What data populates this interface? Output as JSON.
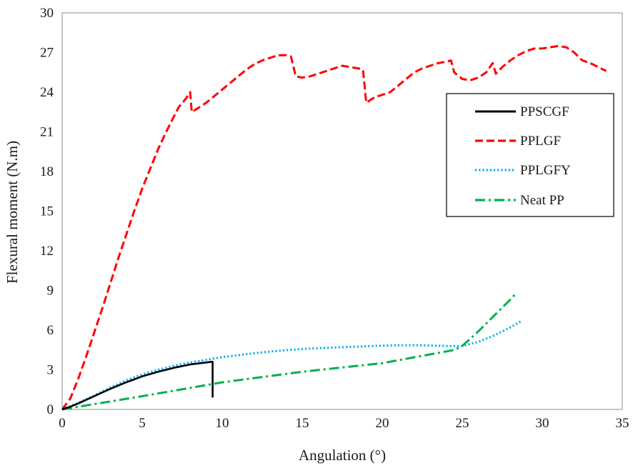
{
  "chart_data": {
    "type": "line",
    "title": "",
    "xlabel": "Angulation (°)",
    "ylabel": "Flexural moment (N.m)",
    "xlim": [
      0,
      35
    ],
    "ylim": [
      0,
      30
    ],
    "xticks": [
      0,
      5,
      10,
      15,
      20,
      25,
      30,
      35
    ],
    "yticks": [
      0,
      3,
      6,
      9,
      12,
      15,
      18,
      21,
      24,
      27,
      30
    ],
    "grid": false,
    "legend_position": "right",
    "series": [
      {
        "name": "PPSCGF",
        "color": "#000000",
        "dash": "solid",
        "points": [
          [
            0,
            0
          ],
          [
            0.5,
            0.2
          ],
          [
            1,
            0.45
          ],
          [
            2,
            1
          ],
          [
            3,
            1.55
          ],
          [
            4,
            2.05
          ],
          [
            5,
            2.5
          ],
          [
            6,
            2.85
          ],
          [
            7,
            3.15
          ],
          [
            8,
            3.4
          ],
          [
            9,
            3.55
          ],
          [
            9.3,
            3.6
          ],
          [
            9.4,
            3.6
          ],
          [
            9.4,
            0.9
          ]
        ]
      },
      {
        "name": "PPLGF",
        "color": "#ff0000",
        "dash": "dashed",
        "points": [
          [
            0,
            0
          ],
          [
            0.5,
            0.8
          ],
          [
            1,
            2.3
          ],
          [
            1.5,
            4
          ],
          [
            2,
            5.8
          ],
          [
            2.5,
            7.6
          ],
          [
            3,
            9.5
          ],
          [
            3.5,
            11.4
          ],
          [
            4,
            13.2
          ],
          [
            4.5,
            15
          ],
          [
            5,
            16.7
          ],
          [
            5.5,
            18.2
          ],
          [
            6,
            19.7
          ],
          [
            6.5,
            21
          ],
          [
            7,
            22.2
          ],
          [
            7.3,
            22.9
          ],
          [
            7.6,
            23.3
          ],
          [
            7.9,
            23.8
          ],
          [
            8,
            24
          ],
          [
            8.1,
            22.5
          ],
          [
            8.5,
            22.8
          ],
          [
            9,
            23.2
          ],
          [
            9.5,
            23.7
          ],
          [
            10,
            24.2
          ],
          [
            10.5,
            24.7
          ],
          [
            11,
            25.2
          ],
          [
            11.5,
            25.7
          ],
          [
            12,
            26.1
          ],
          [
            12.5,
            26.4
          ],
          [
            13,
            26.6
          ],
          [
            13.5,
            26.8
          ],
          [
            14,
            26.8
          ],
          [
            14.3,
            26.7
          ],
          [
            14.6,
            25.2
          ],
          [
            15,
            25.1
          ],
          [
            15.5,
            25.2
          ],
          [
            16,
            25.4
          ],
          [
            16.5,
            25.6
          ],
          [
            17,
            25.8
          ],
          [
            17.5,
            26
          ],
          [
            18,
            25.9
          ],
          [
            18.5,
            25.8
          ],
          [
            18.8,
            25.7
          ],
          [
            19,
            23.2
          ],
          [
            19.5,
            23.6
          ],
          [
            20,
            23.8
          ],
          [
            20.5,
            24
          ],
          [
            21,
            24.5
          ],
          [
            21.5,
            25
          ],
          [
            22,
            25.5
          ],
          [
            22.5,
            25.8
          ],
          [
            23,
            26
          ],
          [
            23.5,
            26.2
          ],
          [
            24,
            26.3
          ],
          [
            24.3,
            26.4
          ],
          [
            24.5,
            25.5
          ],
          [
            25,
            25
          ],
          [
            25.5,
            24.9
          ],
          [
            26,
            25.1
          ],
          [
            26.5,
            25.5
          ],
          [
            26.9,
            26.2
          ],
          [
            27.1,
            25.4
          ],
          [
            27.5,
            25.9
          ],
          [
            28,
            26.4
          ],
          [
            28.5,
            26.8
          ],
          [
            29,
            27.1
          ],
          [
            29.5,
            27.3
          ],
          [
            30,
            27.3
          ],
          [
            30.5,
            27.4
          ],
          [
            31,
            27.5
          ],
          [
            31.5,
            27.4
          ],
          [
            32,
            27
          ],
          [
            32.5,
            26.4
          ],
          [
            33,
            26.2
          ],
          [
            33.5,
            25.9
          ],
          [
            34,
            25.6
          ]
        ]
      },
      {
        "name": "PPLGFY",
        "color": "#00b0f0",
        "dash": "dotted",
        "points": [
          [
            0,
            0
          ],
          [
            1,
            0.5
          ],
          [
            2,
            1.05
          ],
          [
            3,
            1.65
          ],
          [
            4,
            2.2
          ],
          [
            5,
            2.65
          ],
          [
            6,
            3
          ],
          [
            7,
            3.3
          ],
          [
            8,
            3.55
          ],
          [
            9,
            3.75
          ],
          [
            10,
            3.95
          ],
          [
            11,
            4.1
          ],
          [
            12,
            4.25
          ],
          [
            13,
            4.38
          ],
          [
            14,
            4.48
          ],
          [
            15,
            4.57
          ],
          [
            16,
            4.63
          ],
          [
            17,
            4.68
          ],
          [
            18,
            4.73
          ],
          [
            19,
            4.78
          ],
          [
            20,
            4.82
          ],
          [
            21,
            4.85
          ],
          [
            22,
            4.86
          ],
          [
            23,
            4.83
          ],
          [
            24,
            4.8
          ],
          [
            25,
            4.8
          ],
          [
            26,
            5.1
          ],
          [
            27,
            5.6
          ],
          [
            28,
            6.2
          ],
          [
            28.7,
            6.7
          ]
        ]
      },
      {
        "name": "Neat PP",
        "color": "#00b050",
        "dash": "dashdot",
        "points": [
          [
            0,
            0
          ],
          [
            5,
            1
          ],
          [
            10,
            2.05
          ],
          [
            15,
            2.85
          ],
          [
            20,
            3.5
          ],
          [
            24.5,
            4.5
          ],
          [
            25,
            4.8
          ],
          [
            26,
            5.9
          ],
          [
            27,
            7.1
          ],
          [
            28,
            8.3
          ],
          [
            28.3,
            8.7
          ]
        ]
      }
    ]
  }
}
